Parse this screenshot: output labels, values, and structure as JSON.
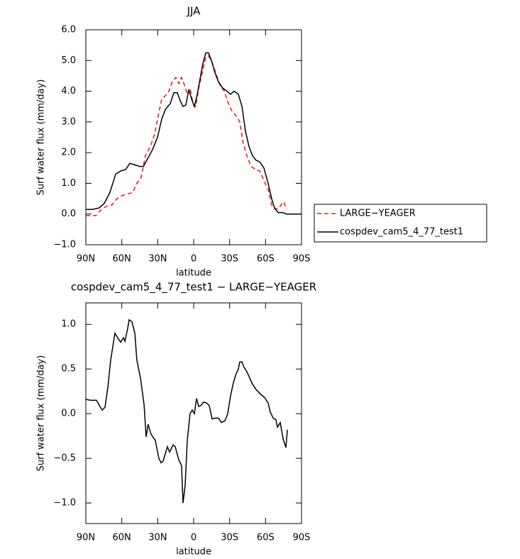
{
  "chart_data": [
    {
      "type": "line",
      "title": "JJA",
      "xlabel": "latitude",
      "ylabel": "Surf water flux (mm/day)",
      "xlim": [
        90,
        -90
      ],
      "xticks": [
        {
          "value": 90,
          "label": "90N"
        },
        {
          "value": 60,
          "label": "60N"
        },
        {
          "value": 30,
          "label": "30N"
        },
        0,
        {
          "value": -30,
          "label": "30S"
        },
        {
          "value": -60,
          "label": "60S"
        },
        {
          "value": -90,
          "label": "90S"
        }
      ],
      "ylim": [
        -1,
        6
      ],
      "yticks": [
        {
          "value": -1,
          "label": "−1.0"
        },
        {
          "value": 0,
          "label": "0.0"
        },
        {
          "value": 1,
          "label": "1.0"
        },
        {
          "value": 2,
          "label": "2.0"
        },
        {
          "value": 3,
          "label": "3.0"
        },
        {
          "value": 4,
          "label": "4.0"
        },
        {
          "value": 5,
          "label": "5.0"
        },
        {
          "value": 6,
          "label": "6.0"
        }
      ],
      "legend": "right",
      "series": [
        {
          "name": "LARGE−YEAGER",
          "color": "#e41a1c",
          "linestyle": "dashed",
          "x": [
            90,
            81.7,
            77,
            72.8,
            68.1,
            64,
            59.8,
            55.1,
            50.9,
            47.4,
            43.8,
            40.3,
            36.1,
            32.6,
            29.6,
            26.6,
            23.7,
            20.7,
            17.8,
            14.8,
            12.4,
            10.1,
            7.7,
            5.3,
            3,
            0.6,
            -1.8,
            -4.2,
            -7.1,
            -10.1,
            -12.4,
            -14.8,
            -18.4,
            -21.9,
            -25.5,
            -29,
            -32.6,
            -35.5,
            -38.5,
            -41.4,
            -44.4,
            -47.9,
            -51.5,
            -55.1,
            -58.6,
            -62.2,
            -65.1,
            -68.1,
            -71,
            -75.2,
            -77.5
          ],
          "values": [
            -0.05,
            -0.05,
            0.15,
            0.25,
            0.3,
            0.5,
            0.6,
            0.65,
            0.7,
            1.0,
            1.2,
            1.9,
            2.2,
            2.6,
            3.2,
            3.75,
            3.85,
            4.0,
            4.3,
            4.45,
            4.25,
            4.45,
            4.2,
            3.9,
            4.1,
            3.6,
            3.5,
            4.1,
            4.6,
            5.1,
            5.15,
            5.0,
            4.6,
            4.2,
            4.0,
            3.6,
            3.3,
            3.2,
            3.0,
            2.3,
            1.9,
            1.55,
            1.45,
            1.4,
            1.1,
            0.8,
            0.3,
            0.15,
            0.2,
            0.4,
            0.15
          ]
        },
        {
          "name": "cospdev_cam5_4_77_test1",
          "color": "#000000",
          "linestyle": "solid",
          "x": [
            90,
            84.7,
            78.8,
            74.6,
            69.9,
            65.1,
            61,
            56.8,
            53.3,
            49.1,
            45,
            42,
            38.5,
            34.3,
            30.2,
            26.6,
            23.7,
            19.5,
            16.6,
            13.6,
            11.3,
            8.9,
            6.5,
            4.1,
            1.8,
            -0.6,
            -3,
            -5.3,
            -7.7,
            -10.1,
            -12.4,
            -14.8,
            -17.8,
            -20.7,
            -24.3,
            -27.8,
            -30.8,
            -33.7,
            -37.3,
            -40.3,
            -43.2,
            -46.2,
            -49.1,
            -52.1,
            -55.1,
            -58.6,
            -62.2,
            -65.1,
            -67.5,
            -70.5,
            -74,
            -77.5,
            -81.1,
            -90
          ],
          "values": [
            0.15,
            0.15,
            0.2,
            0.35,
            0.7,
            1.3,
            1.4,
            1.45,
            1.65,
            1.6,
            1.55,
            1.55,
            1.8,
            2.1,
            2.5,
            3.1,
            3.4,
            3.6,
            3.95,
            3.95,
            3.7,
            3.5,
            3.55,
            4.05,
            3.75,
            3.5,
            3.9,
            4.4,
            4.9,
            5.25,
            5.25,
            5.0,
            4.6,
            4.3,
            4.1,
            4.0,
            3.9,
            4.0,
            3.9,
            3.5,
            2.7,
            2.2,
            1.9,
            1.75,
            1.7,
            1.5,
            1.0,
            0.5,
            0.2,
            0.05,
            0.05,
            0.0,
            0.0,
            0.0
          ]
        }
      ]
    },
    {
      "type": "line",
      "title": "cospdev_cam5_4_77_test1 − LARGE−YEAGER",
      "xlabel": "latitude",
      "ylabel": "Surf water flux (mm/day)",
      "xlim": [
        90,
        -90
      ],
      "xticks": [
        {
          "value": 90,
          "label": "90N"
        },
        {
          "value": 60,
          "label": "60N"
        },
        {
          "value": 30,
          "label": "30N"
        },
        0,
        {
          "value": -30,
          "label": "30S"
        },
        {
          "value": -60,
          "label": "60S"
        },
        {
          "value": -90,
          "label": "90S"
        }
      ],
      "ylim": [
        -1.23,
        1.24
      ],
      "yticks": [
        {
          "value": -1,
          "label": "−1.0"
        },
        {
          "value": -0.5,
          "label": "−0.5"
        },
        {
          "value": 0,
          "label": "0.0"
        },
        {
          "value": 0.5,
          "label": "0.5"
        },
        {
          "value": 1,
          "label": "1.0"
        }
      ],
      "series": [
        {
          "color": "#000000",
          "linestyle": "solid",
          "x": [
            90,
            85.9,
            81.1,
            78.2,
            76.4,
            74,
            71.6,
            69.3,
            65.7,
            63.4,
            61,
            58.6,
            57.4,
            55.1,
            53.9,
            51.5,
            49.1,
            47.4,
            44.4,
            41.4,
            39.7,
            38,
            35.6,
            32,
            29.1,
            27.2,
            25.5,
            21.9,
            20.1,
            17.2,
            15.4,
            12.4,
            10.1,
            8.9,
            7.1,
            5.3,
            3,
            1.2,
            -0.6,
            -2.4,
            -4.2,
            -5.9,
            -8.3,
            -10.7,
            -13,
            -15.4,
            -17.8,
            -20.7,
            -23.1,
            -26.1,
            -28.4,
            -30.8,
            -33.2,
            -35.5,
            -37.3,
            -38.5,
            -40.3,
            -42,
            -44.4,
            -46.8,
            -49.1,
            -52.1,
            -55.7,
            -59.2,
            -62.2,
            -63.9,
            -66.3,
            -68.7,
            -69.9,
            -72.3,
            -74.6,
            -77,
            -78.2
          ],
          "values": [
            0.16,
            0.15,
            0.15,
            0.08,
            0.04,
            0.07,
            0.3,
            0.6,
            0.9,
            0.85,
            0.8,
            0.85,
            0.81,
            0.95,
            1.05,
            1.03,
            0.9,
            0.6,
            0.4,
            0.1,
            -0.26,
            -0.12,
            -0.23,
            -0.3,
            -0.5,
            -0.55,
            -0.53,
            -0.37,
            -0.43,
            -0.35,
            -0.37,
            -0.52,
            -0.58,
            -1.0,
            -0.8,
            -0.3,
            0.0,
            0.04,
            0.0,
            0.17,
            0.08,
            0.09,
            0.13,
            0.12,
            0.09,
            -0.06,
            -0.05,
            -0.05,
            -0.1,
            -0.08,
            0.0,
            0.2,
            0.35,
            0.45,
            0.5,
            0.58,
            0.58,
            0.52,
            0.47,
            0.4,
            0.33,
            0.27,
            0.22,
            0.18,
            0.12,
            0.02,
            -0.05,
            -0.07,
            -0.15,
            -0.1,
            -0.28,
            -0.38,
            -0.18
          ]
        }
      ]
    }
  ]
}
